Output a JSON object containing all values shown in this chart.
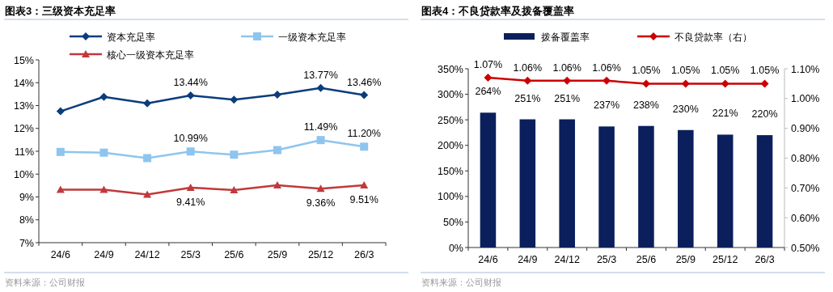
{
  "chart_data": [
    {
      "type": "line",
      "title": "图表3：三级资本充足率",
      "categories": [
        "24/6",
        "24/9",
        "24/12",
        "25/3",
        "25/6",
        "25/9",
        "25/12",
        "26/3"
      ],
      "series": [
        {
          "name": "资本充足率",
          "color": "#0b3d7c",
          "marker": "diamond",
          "values": [
            12.75,
            13.38,
            13.1,
            13.44,
            13.26,
            13.48,
            13.77,
            13.46
          ],
          "value_labels": [
            null,
            null,
            null,
            "13.44%",
            null,
            null,
            "13.77%",
            "13.46%"
          ]
        },
        {
          "name": "一级资本充足率",
          "color": "#8ec5ee",
          "marker": "square",
          "values": [
            10.97,
            10.94,
            10.7,
            10.99,
            10.85,
            11.05,
            11.49,
            11.2
          ],
          "value_labels": [
            null,
            null,
            null,
            "10.99%",
            null,
            null,
            "11.49%",
            "11.20%"
          ]
        },
        {
          "name": "核心一级资本充足率",
          "color": "#c0393b",
          "marker": "triangle",
          "values": [
            9.32,
            9.32,
            9.11,
            9.41,
            9.3,
            9.51,
            9.36,
            9.51
          ],
          "value_labels": [
            null,
            null,
            null,
            "9.41%",
            null,
            null,
            "9.36%",
            "9.51%"
          ]
        }
      ],
      "ylim": [
        7,
        15
      ],
      "yticks": [
        {
          "value": 7,
          "label": "7%"
        },
        {
          "value": 8,
          "label": "8%"
        },
        {
          "value": 9,
          "label": "9%"
        },
        {
          "value": 10,
          "label": "10%"
        },
        {
          "value": 11,
          "label": "11%"
        },
        {
          "value": 12,
          "label": "12%"
        },
        {
          "value": 13,
          "label": "13%"
        },
        {
          "value": 14,
          "label": "14%"
        },
        {
          "value": 15,
          "label": "15%"
        }
      ],
      "legend": "top",
      "grid": false,
      "annotations": [
        "资料来源：公司财报"
      ]
    },
    {
      "type": "bar",
      "title": "图表4：不良贷款率及拨备覆盖率",
      "categories": [
        "24/6",
        "24/9",
        "24/12",
        "25/3",
        "25/6",
        "25/9",
        "25/12",
        "26/3"
      ],
      "series": [
        {
          "name": "拨备覆盖率",
          "color": "#0a1f5c",
          "values": [
            264,
            251,
            251,
            237,
            238,
            230,
            221,
            220
          ],
          "value_labels": [
            "264%",
            "251%",
            "251%",
            "237%",
            "238%",
            "230%",
            "221%",
            "220%"
          ]
        },
        {
          "name": "不良贷款率（右）",
          "type": "line",
          "axis": "y2",
          "color": "#cc0000",
          "marker": "diamond",
          "values": [
            1.07,
            1.06,
            1.06,
            1.06,
            1.05,
            1.05,
            1.05,
            1.05
          ],
          "value_labels": [
            "1.07%",
            "1.06%",
            "1.06%",
            "1.06%",
            "1.05%",
            "1.05%",
            "1.05%",
            "1.05%"
          ]
        }
      ],
      "ylim": [
        0,
        350
      ],
      "yticks": [
        {
          "value": 0,
          "label": "0%"
        },
        {
          "value": 50,
          "label": "50%"
        },
        {
          "value": 100,
          "label": "100%"
        },
        {
          "value": 150,
          "label": "150%"
        },
        {
          "value": 200,
          "label": "200%"
        },
        {
          "value": 250,
          "label": "250%"
        },
        {
          "value": 300,
          "label": "300%"
        },
        {
          "value": 350,
          "label": "350%"
        }
      ],
      "y2lim": [
        0.5,
        1.1
      ],
      "y2ticks": [
        {
          "value": 0.5,
          "label": "0.50%"
        },
        {
          "value": 0.6,
          "label": "0.60%"
        },
        {
          "value": 0.7,
          "label": "0.70%"
        },
        {
          "value": 0.8,
          "label": "0.80%"
        },
        {
          "value": 0.9,
          "label": "0.90%"
        },
        {
          "value": 1.0,
          "label": "1.00%"
        },
        {
          "value": 1.1,
          "label": "1.10%"
        }
      ],
      "legend": "top",
      "grid": false,
      "annotations": [
        "资料来源：公司财报"
      ]
    }
  ]
}
